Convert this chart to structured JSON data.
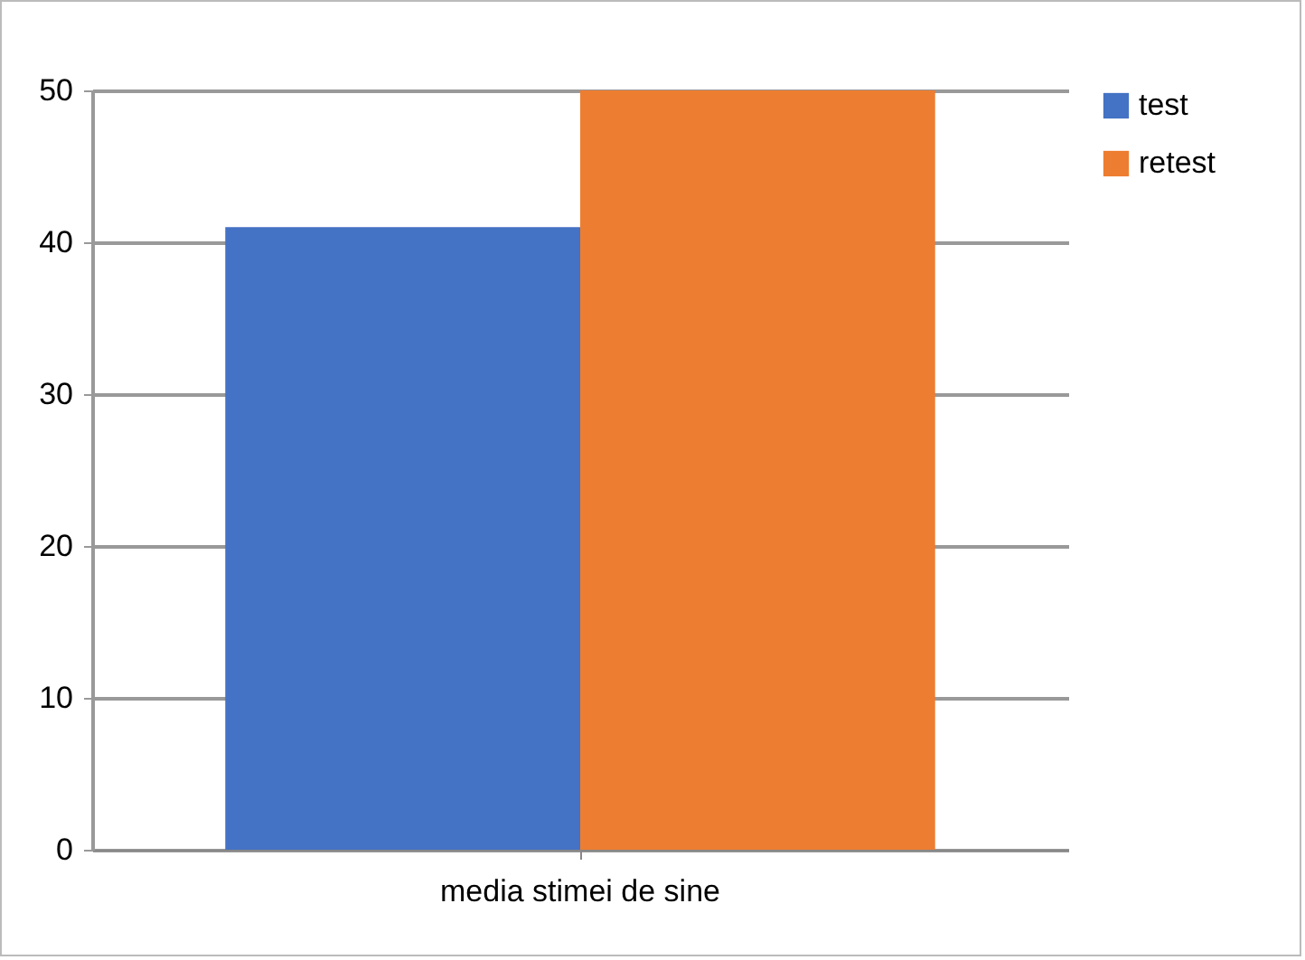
{
  "chart_data": {
    "type": "bar",
    "categories": [
      "media stimei de sine"
    ],
    "series": [
      {
        "name": "test",
        "color": "#4472c4",
        "values": [
          41
        ]
      },
      {
        "name": "retest",
        "color": "#ed7d31",
        "values": [
          50
        ]
      }
    ],
    "ylim": [
      0,
      50
    ],
    "yticks": [
      0,
      10,
      20,
      30,
      40,
      50
    ],
    "grid": "y",
    "legend": "right"
  }
}
